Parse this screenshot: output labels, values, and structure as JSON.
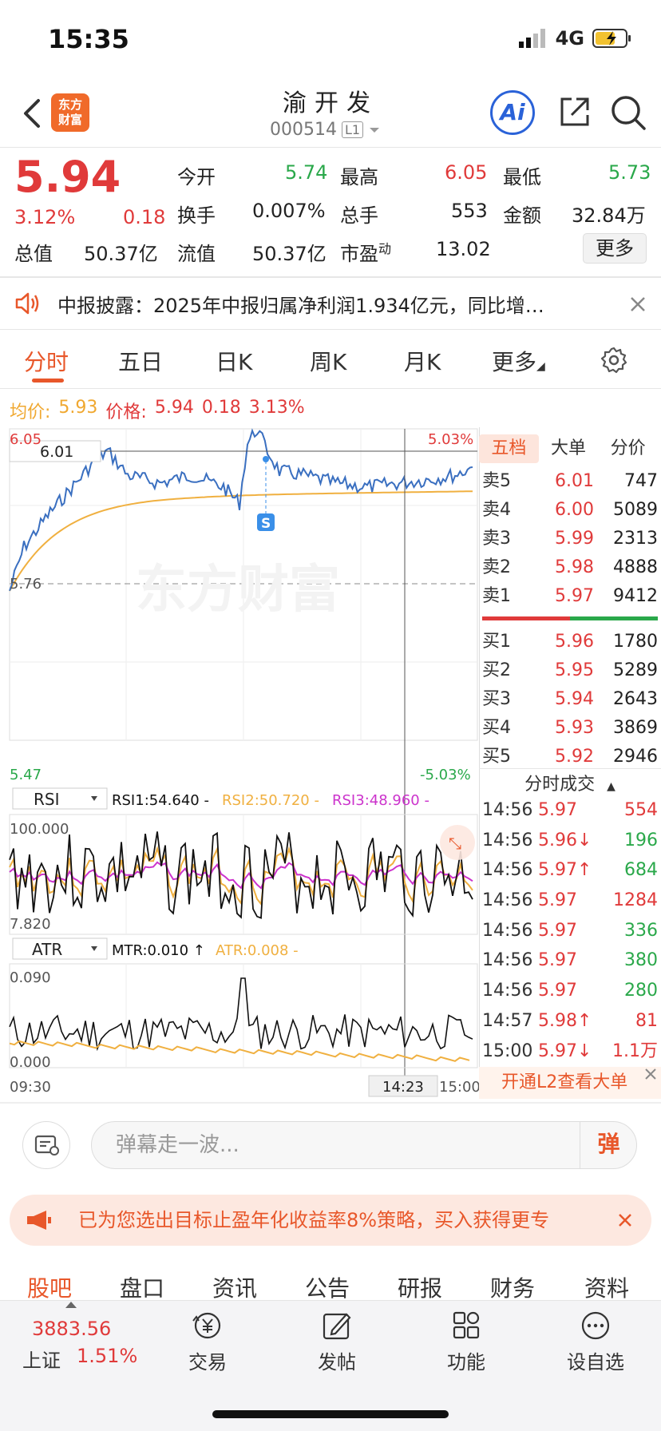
{
  "status": {
    "time": "15:35",
    "network": "4G"
  },
  "header": {
    "logo_text_line1": "东方",
    "logo_text_line2": "财富",
    "stock_name": "渝开发",
    "stock_code": "000514",
    "level_badge": "L1",
    "ai_label": "Ai"
  },
  "quote": {
    "price": "5.94",
    "change_pct": "3.12%",
    "change": "0.18",
    "open_label": "今开",
    "open": "5.74",
    "high_label": "最高",
    "high": "6.05",
    "low_label": "最低",
    "low": "5.73",
    "turnover_label": "换手",
    "turnover": "0.007%",
    "volume_label": "总手",
    "volume": "553",
    "amount_label": "金额",
    "amount": "32.84万",
    "total_cap_label": "总值",
    "total_cap": "50.37亿",
    "float_cap_label": "流值",
    "float_cap": "50.37亿",
    "pe_label": "市盈",
    "pe_sup": "动",
    "pe": "13.02",
    "more_label": "更多"
  },
  "notice": {
    "text": "中报披露：2025年中报归属净利润1.934亿元，同比增…"
  },
  "tabs": [
    {
      "label": "分时"
    },
    {
      "label": "五日"
    },
    {
      "label": "日K"
    },
    {
      "label": "周K"
    },
    {
      "label": "月K"
    },
    {
      "label": "更多"
    }
  ],
  "avg_bar": {
    "avg_label": "均价:",
    "avg": "5.93",
    "price_label": "价格:",
    "price": "5.94",
    "change": "0.18",
    "pct": "3.13%"
  },
  "chart": {
    "y_top": "6.05",
    "y_mid": "5.76",
    "y_bottom": "5.47",
    "pct_top": "5.03%",
    "pct_bottom": "-5.03%",
    "cursor_price": "6.01",
    "cursor_time": "14:23",
    "x_start": "09:30",
    "x_end": "15:00",
    "marker": "S",
    "watermark": "东方财富",
    "rsi_select": "RSI",
    "rsi1": "RSI1:54.640 -",
    "rsi2": "RSI2:50.720 -",
    "rsi3": "RSI3:48.960 -",
    "rsi_top": "100.000",
    "rsi_bottom": "7.820",
    "atr_select": "ATR",
    "mtr": "MTR:0.010 ↑",
    "atr": "ATR:0.008 -",
    "atr_top": "0.090",
    "atr_bottom": "0.000",
    "colors": {
      "price": "#3a6fc0",
      "avg": "#f0b040",
      "rsi1": "#111111",
      "rsi2": "#f0b040",
      "rsi3": "#cc33cc"
    }
  },
  "orderbook": {
    "tabs": [
      {
        "label": "五档"
      },
      {
        "label": "大单"
      },
      {
        "label": "分价"
      }
    ],
    "asks": [
      {
        "label": "卖5",
        "price": "6.01",
        "vol": "747"
      },
      {
        "label": "卖4",
        "price": "6.00",
        "vol": "5089"
      },
      {
        "label": "卖3",
        "price": "5.99",
        "vol": "2313"
      },
      {
        "label": "卖2",
        "price": "5.98",
        "vol": "4888"
      },
      {
        "label": "卖1",
        "price": "5.97",
        "vol": "9412"
      }
    ],
    "bids": [
      {
        "label": "买1",
        "price": "5.96",
        "vol": "1780"
      },
      {
        "label": "买2",
        "price": "5.95",
        "vol": "5289"
      },
      {
        "label": "买3",
        "price": "5.94",
        "vol": "2643"
      },
      {
        "label": "买4",
        "price": "5.93",
        "vol": "3869"
      },
      {
        "label": "买5",
        "price": "5.92",
        "vol": "2946"
      }
    ],
    "trades_title": "分时成交",
    "trades": [
      {
        "time": "14:56",
        "price": "5.97",
        "vol": "554",
        "vol_color": "red"
      },
      {
        "time": "14:56",
        "price": "5.96↓",
        "vol": "196",
        "vol_color": "green"
      },
      {
        "time": "14:56",
        "price": "5.97↑",
        "vol": "684",
        "vol_color": "green"
      },
      {
        "time": "14:56",
        "price": "5.97",
        "vol": "1284",
        "vol_color": "red"
      },
      {
        "time": "14:56",
        "price": "5.97",
        "vol": "336",
        "vol_color": "green"
      },
      {
        "time": "14:56",
        "price": "5.97",
        "vol": "380",
        "vol_color": "green"
      },
      {
        "time": "14:56",
        "price": "5.97",
        "vol": "280",
        "vol_color": "green"
      },
      {
        "time": "14:57",
        "price": "5.98↑",
        "vol": "81",
        "vol_color": "red"
      },
      {
        "time": "15:00",
        "price": "5.97↓",
        "vol": "1.1万",
        "vol_color": "red"
      }
    ],
    "l2_label": "开通L2查看大单"
  },
  "comment": {
    "placeholder": "弹幕走一波...",
    "danmu_label": "弹"
  },
  "promo": {
    "text": "已为您选出目标止盈年化收益率8%策略，买入获得更专"
  },
  "subnav": [
    {
      "label": "股吧"
    },
    {
      "label": "盘口"
    },
    {
      "label": "资讯"
    },
    {
      "label": "公告"
    },
    {
      "label": "研报"
    },
    {
      "label": "财务"
    },
    {
      "label": "资料"
    }
  ],
  "bottom": {
    "index_value": "3883.56",
    "index_name": "上证",
    "index_pct": "1.51%",
    "items": [
      {
        "label": "交易"
      },
      {
        "label": "发帖"
      },
      {
        "label": "功能"
      },
      {
        "label": "设自选"
      }
    ]
  }
}
